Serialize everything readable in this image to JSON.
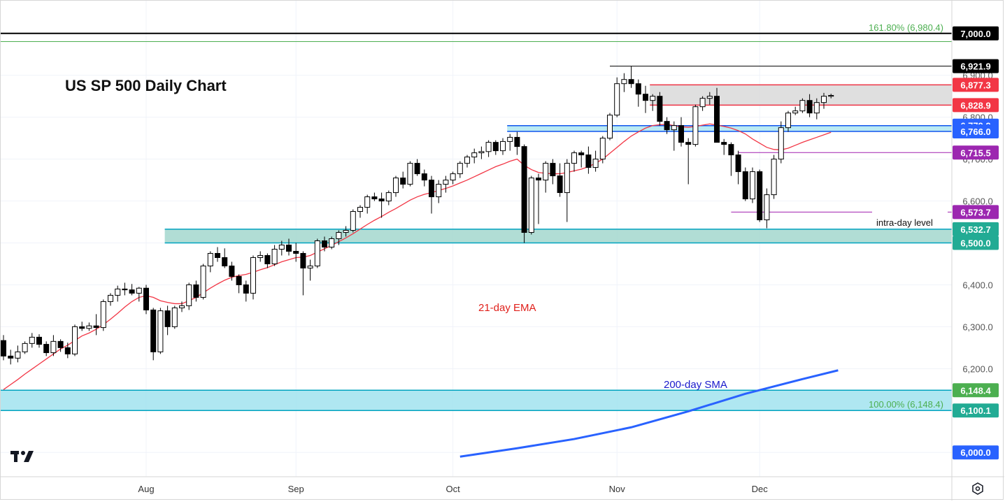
{
  "chart_data": {
    "type": "candlestick",
    "title": "US SP 500 Daily Chart",
    "ylim": [
      5942,
      7078
    ],
    "axis": {
      "ticks": [
        6000.0,
        6100.0,
        6200.0,
        6300.0,
        6400.0,
        6500.0,
        6600.0,
        6700.0,
        6800.0,
        6900.0,
        7000.0
      ],
      "tick_labels": [
        "6,200.0",
        "6,300.0",
        "6,400.0",
        "6,600.0",
        "6,700.0",
        "6,800.0",
        "6,900.0"
      ],
      "tick_label_values": [
        6200.0,
        6300.0,
        6400.0,
        6600.0,
        6700.0,
        6800.0,
        6900.0
      ]
    },
    "x_months": [
      {
        "label": "Aug",
        "index": 20
      },
      {
        "label": "Sep",
        "index": 41
      },
      {
        "label": "Oct",
        "index": 63
      },
      {
        "label": "Nov",
        "index": 86
      },
      {
        "label": "Dec",
        "index": 106
      }
    ],
    "ohlc": [
      [
        6267,
        6280,
        6220,
        6230
      ],
      [
        6230,
        6245,
        6210,
        6225
      ],
      [
        6225,
        6255,
        6215,
        6240
      ],
      [
        6240,
        6265,
        6235,
        6260
      ],
      [
        6260,
        6285,
        6250,
        6275
      ],
      [
        6275,
        6282,
        6250,
        6258
      ],
      [
        6258,
        6265,
        6230,
        6238
      ],
      [
        6238,
        6280,
        6230,
        6265
      ],
      [
        6265,
        6270,
        6240,
        6250
      ],
      [
        6250,
        6262,
        6225,
        6235
      ],
      [
        6235,
        6305,
        6230,
        6300
      ],
      [
        6300,
        6312,
        6290,
        6296
      ],
      [
        6296,
        6310,
        6290,
        6302
      ],
      [
        6302,
        6330,
        6280,
        6298
      ],
      [
        6298,
        6365,
        6290,
        6360
      ],
      [
        6360,
        6380,
        6350,
        6375
      ],
      [
        6375,
        6398,
        6360,
        6390
      ],
      [
        6390,
        6405,
        6375,
        6388
      ],
      [
        6388,
        6402,
        6375,
        6380
      ],
      [
        6380,
        6395,
        6360,
        6392
      ],
      [
        6392,
        6400,
        6330,
        6340
      ],
      [
        6340,
        6345,
        6220,
        6240
      ],
      [
        6240,
        6345,
        6235,
        6338
      ],
      [
        6338,
        6350,
        6280,
        6300
      ],
      [
        6300,
        6350,
        6295,
        6345
      ],
      [
        6345,
        6360,
        6335,
        6350
      ],
      [
        6350,
        6405,
        6340,
        6400
      ],
      [
        6400,
        6410,
        6360,
        6370
      ],
      [
        6370,
        6450,
        6365,
        6445
      ],
      [
        6445,
        6480,
        6430,
        6475
      ],
      [
        6475,
        6490,
        6455,
        6465
      ],
      [
        6465,
        6487,
        6440,
        6445
      ],
      [
        6445,
        6455,
        6410,
        6420
      ],
      [
        6420,
        6425,
        6380,
        6400
      ],
      [
        6400,
        6410,
        6360,
        6380
      ],
      [
        6380,
        6470,
        6365,
        6465
      ],
      [
        6465,
        6480,
        6455,
        6470
      ],
      [
        6470,
        6475,
        6440,
        6450
      ],
      [
        6450,
        6495,
        6445,
        6485
      ],
      [
        6485,
        6505,
        6470,
        6495
      ],
      [
        6495,
        6510,
        6470,
        6480
      ],
      [
        6480,
        6500,
        6455,
        6475
      ],
      [
        6475,
        6480,
        6375,
        6440
      ],
      [
        6440,
        6460,
        6410,
        6445
      ],
      [
        6445,
        6510,
        6440,
        6505
      ],
      [
        6505,
        6515,
        6480,
        6490
      ],
      [
        6490,
        6515,
        6485,
        6510
      ],
      [
        6510,
        6530,
        6495,
        6525
      ],
      [
        6525,
        6540,
        6515,
        6530
      ],
      [
        6530,
        6580,
        6525,
        6575
      ],
      [
        6575,
        6590,
        6560,
        6585
      ],
      [
        6585,
        6615,
        6570,
        6610
      ],
      [
        6610,
        6620,
        6600,
        6605
      ],
      [
        6605,
        6620,
        6560,
        6600
      ],
      [
        6600,
        6625,
        6590,
        6620
      ],
      [
        6620,
        6660,
        6610,
        6655
      ],
      [
        6655,
        6670,
        6630,
        6640
      ],
      [
        6640,
        6695,
        6635,
        6690
      ],
      [
        6690,
        6700,
        6660,
        6665
      ],
      [
        6665,
        6675,
        6635,
        6650
      ],
      [
        6650,
        6660,
        6570,
        6610
      ],
      [
        6610,
        6650,
        6595,
        6640
      ],
      [
        6640,
        6660,
        6620,
        6650
      ],
      [
        6650,
        6670,
        6640,
        6665
      ],
      [
        6665,
        6695,
        6655,
        6690
      ],
      [
        6690,
        6710,
        6680,
        6705
      ],
      [
        6705,
        6725,
        6690,
        6715
      ],
      [
        6715,
        6730,
        6700,
        6718
      ],
      [
        6718,
        6745,
        6705,
        6740
      ],
      [
        6740,
        6745,
        6710,
        6720
      ],
      [
        6720,
        6750,
        6710,
        6742
      ],
      [
        6742,
        6760,
        6720,
        6752
      ],
      [
        6752,
        6765,
        6710,
        6730
      ],
      [
        6730,
        6735,
        6500,
        6525
      ],
      [
        6525,
        6660,
        6520,
        6655
      ],
      [
        6655,
        6665,
        6545,
        6650
      ],
      [
        6650,
        6695,
        6620,
        6690
      ],
      [
        6690,
        6700,
        6640,
        6660
      ],
      [
        6660,
        6690,
        6610,
        6620
      ],
      [
        6620,
        6700,
        6550,
        6690
      ],
      [
        6690,
        6720,
        6670,
        6715
      ],
      [
        6715,
        6720,
        6680,
        6710
      ],
      [
        6710,
        6730,
        6665,
        6680
      ],
      [
        6680,
        6720,
        6670,
        6700
      ],
      [
        6700,
        6755,
        6690,
        6750
      ],
      [
        6750,
        6810,
        6745,
        6805
      ],
      [
        6805,
        6895,
        6800,
        6880
      ],
      [
        6880,
        6905,
        6860,
        6890
      ],
      [
        6890,
        6922,
        6870,
        6880
      ],
      [
        6880,
        6890,
        6825,
        6855
      ],
      [
        6855,
        6875,
        6810,
        6840
      ],
      [
        6840,
        6855,
        6815,
        6850
      ],
      [
        6850,
        6860,
        6780,
        6790
      ],
      [
        6790,
        6800,
        6760,
        6770
      ],
      [
        6770,
        6790,
        6720,
        6780
      ],
      [
        6780,
        6800,
        6730,
        6740
      ],
      [
        6740,
        6750,
        6640,
        6735
      ],
      [
        6735,
        6830,
        6730,
        6825
      ],
      [
        6825,
        6850,
        6815,
        6845
      ],
      [
        6845,
        6860,
        6830,
        6850
      ],
      [
        6850,
        6870,
        6745,
        6740
      ],
      [
        6740,
        6748,
        6710,
        6735
      ],
      [
        6735,
        6740,
        6660,
        6710
      ],
      [
        6710,
        6720,
        6640,
        6670
      ],
      [
        6670,
        6680,
        6600,
        6605
      ],
      [
        6605,
        6680,
        6595,
        6670
      ],
      [
        6670,
        6675,
        6550,
        6555
      ],
      [
        6555,
        6630,
        6535,
        6615
      ],
      [
        6615,
        6710,
        6605,
        6700
      ],
      [
        6700,
        6790,
        6690,
        6775
      ],
      [
        6775,
        6815,
        6765,
        6810
      ],
      [
        6810,
        6825,
        6805,
        6815
      ],
      [
        6815,
        6845,
        6810,
        6840
      ],
      [
        6840,
        6855,
        6800,
        6810
      ],
      [
        6810,
        6845,
        6795,
        6835
      ],
      [
        6835,
        6858,
        6820,
        6850
      ],
      [
        6850,
        6856,
        6845,
        6852
      ]
    ],
    "ema21": [
      6150,
      6162,
      6174,
      6187,
      6199,
      6211,
      6223,
      6235,
      6247,
      6256,
      6267,
      6278,
      6285,
      6294,
      6305,
      6318,
      6332,
      6347,
      6360,
      6370,
      6374,
      6370,
      6362,
      6358,
      6355,
      6355,
      6362,
      6370,
      6381,
      6392,
      6402,
      6411,
      6418,
      6422,
      6425,
      6430,
      6436,
      6441,
      6448,
      6455,
      6460,
      6465,
      6466,
      6470,
      6478,
      6486,
      6494,
      6503,
      6512,
      6522,
      6533,
      6544,
      6554,
      6563,
      6573,
      6582,
      6592,
      6602,
      6610,
      6616,
      6620,
      6625,
      6630,
      6636,
      6643,
      6650,
      6658,
      6666,
      6674,
      6682,
      6688,
      6695,
      6700,
      6685,
      6675,
      6668,
      6666,
      6665,
      6665,
      6668,
      6672,
      6676,
      6682,
      6690,
      6700,
      6714,
      6728,
      6742,
      6755,
      6765,
      6774,
      6780,
      6782,
      6783,
      6780,
      6777,
      6776,
      6778,
      6781,
      6784,
      6781,
      6778,
      6774,
      6768,
      6760,
      6748,
      6738,
      6728,
      6723,
      6722,
      6726,
      6733,
      6740,
      6746,
      6752,
      6758,
      6764
    ],
    "sma200": {
      "start_index": 0,
      "note": "",
      "series": [
        {
          "i": 64,
          "v": 5990
        },
        {
          "i": 72,
          "v": 6010
        },
        {
          "i": 80,
          "v": 6032
        },
        {
          "i": 88,
          "v": 6060
        },
        {
          "i": 96,
          "v": 6098
        },
        {
          "i": 104,
          "v": 6140
        },
        {
          "i": 112,
          "v": 6175
        },
        {
          "i": 117,
          "v": 6196
        }
      ]
    },
    "zones": [
      {
        "low": 6500.0,
        "high": 6532.7,
        "from_index": 23,
        "color": "#a8d9d0",
        "border": "#00a3bf"
      },
      {
        "low": 6766.0,
        "high": 6779.9,
        "from_index": 71,
        "color": "#b3e8f2",
        "border": "#1155ee"
      },
      {
        "low": 6828.9,
        "high": 6877.3,
        "from_index": 91,
        "color": "#dcdcdc",
        "border": "#ee3344"
      },
      {
        "low": 6100.1,
        "high": 6148.4,
        "from_index": -1,
        "color": "#a6e4ef",
        "border": "#00a3bf"
      }
    ],
    "levels": [
      {
        "value": 6921.9,
        "from_index": 85,
        "color": "#000000"
      },
      {
        "value": 6715.5,
        "from_index": 103,
        "color": "#a020b0"
      },
      {
        "value": 6573.7,
        "from_index": 102,
        "color": "#a020b0"
      },
      {
        "value": 7000.0,
        "from_index": -1,
        "color": "#000000"
      },
      {
        "value": 6980.4,
        "from_index": -1,
        "color": "#4caf50"
      }
    ],
    "price_tags": [
      {
        "value": 7000.0,
        "text": "7,000.0",
        "bg": "#000000"
      },
      {
        "value": 6921.9,
        "text": "6,921.9",
        "bg": "#000000"
      },
      {
        "value": 6877.3,
        "text": "6,877.3",
        "bg": "#f23645"
      },
      {
        "value": 6828.9,
        "text": "6,828.9",
        "bg": "#f23645"
      },
      {
        "value": 6779.9,
        "text": "6,779.9",
        "bg": "#2962ff"
      },
      {
        "value": 6766.0,
        "text": "6,766.0",
        "bg": "#2962ff"
      },
      {
        "value": 6715.5,
        "text": "6,715.5",
        "bg": "#9c27b0"
      },
      {
        "value": 6573.7,
        "text": "6,573.7",
        "bg": "#9c27b0"
      },
      {
        "value": 6532.7,
        "text": "6,532.7",
        "bg": "#22ab94"
      },
      {
        "value": 6500.0,
        "text": "6,500.0",
        "bg": "#22ab94"
      },
      {
        "value": 6148.4,
        "text": "6,148.4",
        "bg": "#4caf50"
      },
      {
        "value": 6100.1,
        "text": "6,100.1",
        "bg": "#22ab94"
      },
      {
        "value": 6000.0,
        "text": "6,000.0",
        "bg": "#2962ff"
      }
    ],
    "annotations": [
      {
        "text": "21-day EMA",
        "color": "#e0201b"
      },
      {
        "text": "200-day SMA",
        "color": "#1a1acc"
      },
      {
        "text": "intra-day level",
        "color": "#111111"
      },
      {
        "text": "161.80% (6,980.4)",
        "color": "#4caf50"
      },
      {
        "text": "100.00% (6,148.4)",
        "color": "#4caf50"
      }
    ],
    "colors": {
      "up_body": "#ffffff",
      "down_body": "#000000",
      "candle_stroke": "#000000",
      "ema": "#f23645",
      "sma": "#2962ff",
      "grid": "#f0f3fa",
      "tag_text": "#ffffff",
      "axis_text": "#555555"
    },
    "icons": {
      "logo": "tradingview-logo-icon",
      "settings": "settings-hexagon-icon"
    }
  }
}
